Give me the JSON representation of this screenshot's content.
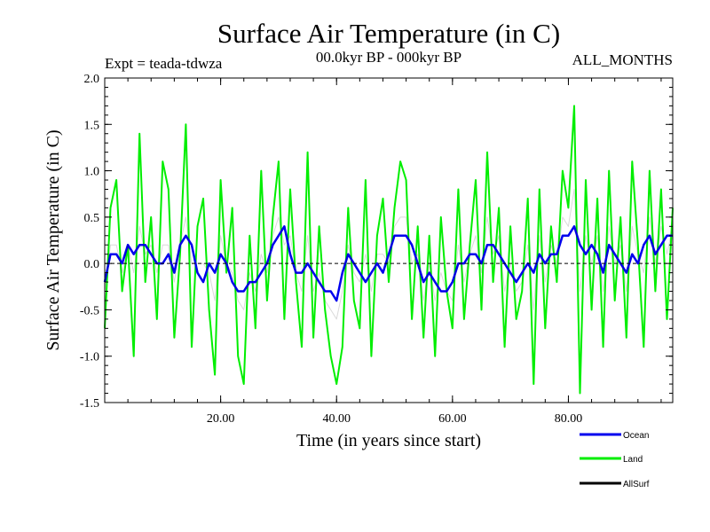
{
  "chart_data": {
    "type": "line",
    "title": "Surface Air Temperature (in C)",
    "subtitle_left": "Expt = teada-tdwza",
    "subtitle_center": "00.0kyr BP - 000kyr BP",
    "subtitle_right": "ALL_MONTHS",
    "xlabel": "Time (in years since start)",
    "ylabel": "Surface Air Temperature (in C)",
    "xlim": [
      0,
      98
    ],
    "ylim": [
      -1.5,
      2.0
    ],
    "x_ticks": [
      20,
      40,
      60,
      80
    ],
    "x_tick_labels": [
      "20.00",
      "40.00",
      "60.00",
      "80.00"
    ],
    "y_ticks": [
      -1.5,
      -1.0,
      -0.5,
      0.0,
      0.5,
      1.0,
      1.5,
      2.0
    ],
    "y_tick_labels": [
      "-1.5",
      "-1.0",
      "-0.5",
      "0.0",
      "0.5",
      "1.0",
      "1.5",
      "2.0"
    ],
    "zero_line": true,
    "legend_position": "bottom-right",
    "series": [
      {
        "name": "Land",
        "color": "#00ee00",
        "x": [
          0,
          1,
          2,
          3,
          4,
          5,
          6,
          7,
          8,
          9,
          10,
          11,
          12,
          13,
          14,
          15,
          16,
          17,
          18,
          19,
          20,
          21,
          22,
          23,
          24,
          25,
          26,
          27,
          28,
          29,
          30,
          31,
          32,
          33,
          34,
          35,
          36,
          37,
          38,
          39,
          40,
          41,
          42,
          43,
          44,
          45,
          46,
          47,
          48,
          49,
          50,
          51,
          52,
          53,
          54,
          55,
          56,
          57,
          58,
          59,
          60,
          61,
          62,
          63,
          64,
          65,
          66,
          67,
          68,
          69,
          70,
          71,
          72,
          73,
          74,
          75,
          76,
          77,
          78,
          79,
          80,
          81,
          82,
          83,
          84,
          85,
          86,
          87,
          88,
          89,
          90,
          91,
          92,
          93,
          94,
          95,
          96,
          97,
          98
        ],
        "values": [
          -0.7,
          0.6,
          0.9,
          -0.3,
          0.2,
          -1.0,
          1.4,
          -0.2,
          0.5,
          -0.6,
          1.1,
          0.8,
          -0.8,
          0.1,
          1.5,
          -0.9,
          0.4,
          0.7,
          -0.5,
          -1.2,
          0.9,
          -0.1,
          0.6,
          -1.0,
          -1.3,
          0.3,
          -0.7,
          1.0,
          -0.4,
          0.5,
          1.1,
          -0.6,
          0.8,
          -0.2,
          -0.9,
          1.2,
          -0.8,
          0.4,
          -0.5,
          -1.0,
          -1.3,
          -0.9,
          0.6,
          -0.4,
          -0.7,
          0.9,
          -1.0,
          0.3,
          0.7,
          -0.2,
          0.6,
          1.1,
          0.9,
          -0.6,
          0.4,
          -0.8,
          0.3,
          -1.0,
          0.5,
          -0.3,
          -0.7,
          0.8,
          -0.6,
          0.2,
          0.9,
          -0.5,
          1.2,
          -0.2,
          0.6,
          -0.9,
          0.4,
          -0.6,
          -0.3,
          0.7,
          -1.3,
          0.8,
          -0.7,
          0.4,
          -0.2,
          1.0,
          0.6,
          1.7,
          -1.4,
          0.9,
          -0.5,
          0.7,
          -0.9,
          1.0,
          -0.4,
          0.5,
          -0.8,
          1.1,
          0.2,
          -0.9,
          1.0,
          -0.3,
          0.8,
          -0.6,
          0.6
        ]
      },
      {
        "name": "Ocean",
        "color": "#0000ee",
        "x": [
          0,
          1,
          2,
          3,
          4,
          5,
          6,
          7,
          8,
          9,
          10,
          11,
          12,
          13,
          14,
          15,
          16,
          17,
          18,
          19,
          20,
          21,
          22,
          23,
          24,
          25,
          26,
          27,
          28,
          29,
          30,
          31,
          32,
          33,
          34,
          35,
          36,
          37,
          38,
          39,
          40,
          41,
          42,
          43,
          44,
          45,
          46,
          47,
          48,
          49,
          50,
          51,
          52,
          53,
          54,
          55,
          56,
          57,
          58,
          59,
          60,
          61,
          62,
          63,
          64,
          65,
          66,
          67,
          68,
          69,
          70,
          71,
          72,
          73,
          74,
          75,
          76,
          77,
          78,
          79,
          80,
          81,
          82,
          83,
          84,
          85,
          86,
          87,
          88,
          89,
          90,
          91,
          92,
          93,
          94,
          95,
          96,
          97,
          98
        ],
        "values": [
          -0.2,
          0.1,
          0.1,
          0.0,
          0.2,
          0.1,
          0.2,
          0.2,
          0.1,
          0.0,
          0.0,
          0.1,
          -0.1,
          0.2,
          0.3,
          0.2,
          -0.1,
          -0.2,
          0.0,
          -0.1,
          0.1,
          0.0,
          -0.2,
          -0.3,
          -0.3,
          -0.2,
          -0.2,
          -0.1,
          0.0,
          0.2,
          0.3,
          0.4,
          0.1,
          -0.1,
          -0.1,
          0.0,
          -0.1,
          -0.2,
          -0.3,
          -0.3,
          -0.4,
          -0.1,
          0.1,
          0.0,
          -0.1,
          -0.2,
          -0.1,
          0.0,
          -0.1,
          0.1,
          0.3,
          0.3,
          0.3,
          0.2,
          0.0,
          -0.2,
          -0.1,
          -0.2,
          -0.3,
          -0.3,
          -0.2,
          0.0,
          0.0,
          0.1,
          0.1,
          0.0,
          0.2,
          0.2,
          0.1,
          0.0,
          -0.1,
          -0.2,
          -0.1,
          0.0,
          -0.1,
          0.1,
          0.0,
          0.1,
          0.1,
          0.3,
          0.3,
          0.4,
          0.2,
          0.1,
          0.2,
          0.1,
          -0.1,
          0.2,
          0.1,
          0.0,
          -0.1,
          0.1,
          0.0,
          0.2,
          0.3,
          0.1,
          0.2,
          0.3,
          0.3
        ]
      },
      {
        "name": "AllSurf",
        "color": "#000000",
        "x": [
          0,
          1,
          2,
          3,
          4,
          5,
          6,
          7,
          8,
          9,
          10,
          11,
          12,
          13,
          14,
          15,
          16,
          17,
          18,
          19,
          20,
          21,
          22,
          23,
          24,
          25,
          26,
          27,
          28,
          29,
          30,
          31,
          32,
          33,
          34,
          35,
          36,
          37,
          38,
          39,
          40,
          41,
          42,
          43,
          44,
          45,
          46,
          47,
          48,
          49,
          50,
          51,
          52,
          53,
          54,
          55,
          56,
          57,
          58,
          59,
          60,
          61,
          62,
          63,
          64,
          65,
          66,
          67,
          68,
          69,
          70,
          71,
          72,
          73,
          74,
          75,
          76,
          77,
          78,
          79,
          80,
          81,
          82,
          83,
          84,
          85,
          86,
          87,
          88,
          89,
          90,
          91,
          92,
          93,
          94,
          95,
          96,
          97,
          98
        ],
        "values": [
          -0.3,
          0.2,
          0.2,
          -0.1,
          0.2,
          -0.1,
          0.4,
          0.1,
          0.2,
          -0.1,
          0.2,
          0.2,
          -0.2,
          0.2,
          0.5,
          0.0,
          0.0,
          0.0,
          -0.1,
          -0.4,
          0.3,
          0.0,
          -0.1,
          -0.4,
          -0.5,
          -0.1,
          -0.3,
          0.1,
          -0.1,
          0.3,
          0.5,
          0.2,
          0.3,
          -0.1,
          -0.3,
          0.3,
          -0.3,
          -0.1,
          -0.4,
          -0.5,
          -0.6,
          -0.3,
          0.2,
          -0.1,
          -0.2,
          0.1,
          -0.3,
          0.1,
          0.1,
          0.0,
          0.4,
          0.5,
          0.5,
          0.0,
          0.1,
          -0.4,
          0.0,
          -0.4,
          -0.1,
          -0.3,
          -0.4,
          0.2,
          -0.2,
          0.1,
          0.3,
          -0.1,
          0.5,
          0.1,
          0.3,
          -0.3,
          0.0,
          -0.3,
          -0.2,
          0.2,
          -0.5,
          0.3,
          -0.2,
          0.2,
          0.0,
          0.5,
          0.4,
          0.8,
          -0.3,
          0.3,
          0.0,
          0.3,
          -0.3,
          0.4,
          0.0,
          0.2,
          -0.3,
          0.4,
          0.1,
          -0.1,
          0.5,
          0.0,
          0.4,
          0.1,
          0.4
        ]
      }
    ]
  },
  "legend": [
    {
      "label": "Ocean",
      "color": "#0000ee"
    },
    {
      "label": "Land",
      "color": "#00ee00"
    },
    {
      "label": "AllSurf",
      "color": "#000000"
    }
  ]
}
